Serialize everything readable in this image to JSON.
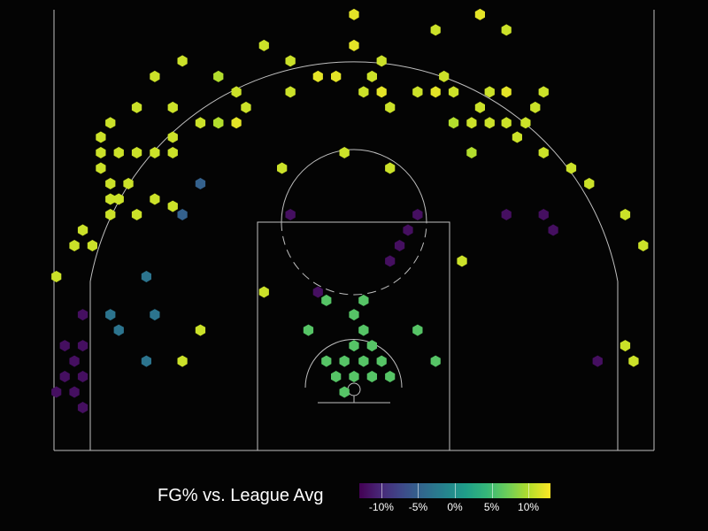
{
  "chart_data": {
    "type": "hexbin",
    "legend": {
      "title": "FG% vs. League Avg",
      "ticks": [
        "-10%",
        "-5%",
        "0%",
        "5%",
        "10%"
      ],
      "tick_values": [
        -10,
        -5,
        0,
        5,
        10
      ],
      "range": [
        -13,
        13
      ],
      "colormap": "viridis"
    },
    "court": {
      "units": "feet",
      "x_range": [
        -25,
        25
      ],
      "y_range": [
        0,
        37
      ]
    },
    "points": [
      {
        "x": 0,
        "y": 36.6,
        "v": 12
      },
      {
        "x": 10.5,
        "y": 36.6,
        "v": 12
      },
      {
        "x": 6.8,
        "y": 35.3,
        "v": 11
      },
      {
        "x": 12.7,
        "y": 35.3,
        "v": 11
      },
      {
        "x": -7.5,
        "y": 34.0,
        "v": 11
      },
      {
        "x": 0,
        "y": 34.0,
        "v": 12
      },
      {
        "x": -14.3,
        "y": 32.7,
        "v": 11
      },
      {
        "x": -5.3,
        "y": 32.7,
        "v": 11
      },
      {
        "x": 2.3,
        "y": 32.7,
        "v": 11
      },
      {
        "x": -16.6,
        "y": 31.4,
        "v": 11
      },
      {
        "x": -11.3,
        "y": 31.4,
        "v": 10
      },
      {
        "x": -3.0,
        "y": 31.4,
        "v": 12
      },
      {
        "x": -1.5,
        "y": 31.4,
        "v": 12
      },
      {
        "x": 1.5,
        "y": 31.4,
        "v": 11
      },
      {
        "x": 7.5,
        "y": 31.4,
        "v": 11
      },
      {
        "x": -9.8,
        "y": 30.1,
        "v": 11
      },
      {
        "x": -5.3,
        "y": 30.1,
        "v": 11
      },
      {
        "x": 0.8,
        "y": 30.1,
        "v": 11
      },
      {
        "x": 2.3,
        "y": 30.1,
        "v": 12
      },
      {
        "x": 5.3,
        "y": 30.1,
        "v": 11
      },
      {
        "x": 6.8,
        "y": 30.1,
        "v": 12
      },
      {
        "x": 8.3,
        "y": 30.1,
        "v": 11
      },
      {
        "x": 11.3,
        "y": 30.1,
        "v": 11
      },
      {
        "x": 12.7,
        "y": 30.1,
        "v": 12
      },
      {
        "x": 15.8,
        "y": 30.1,
        "v": 11
      },
      {
        "x": -18.1,
        "y": 28.8,
        "v": 11
      },
      {
        "x": -15.1,
        "y": 28.8,
        "v": 11
      },
      {
        "x": -9.0,
        "y": 28.8,
        "v": 11
      },
      {
        "x": 3.0,
        "y": 28.8,
        "v": 11
      },
      {
        "x": 10.5,
        "y": 28.8,
        "v": 11
      },
      {
        "x": 15.1,
        "y": 28.8,
        "v": 11
      },
      {
        "x": -20.3,
        "y": 27.5,
        "v": 11
      },
      {
        "x": -12.8,
        "y": 27.5,
        "v": 11
      },
      {
        "x": -11.3,
        "y": 27.5,
        "v": 11
      },
      {
        "x": -11.3,
        "y": 27.5,
        "v": 10
      },
      {
        "x": -9.8,
        "y": 27.5,
        "v": 12
      },
      {
        "x": 8.3,
        "y": 27.5,
        "v": 10
      },
      {
        "x": 9.8,
        "y": 27.5,
        "v": 11
      },
      {
        "x": 11.3,
        "y": 27.5,
        "v": 11
      },
      {
        "x": 12.7,
        "y": 27.5,
        "v": 11
      },
      {
        "x": 14.3,
        "y": 27.5,
        "v": 11
      },
      {
        "x": -15.1,
        "y": 26.3,
        "v": 11
      },
      {
        "x": -21.1,
        "y": 26.3,
        "v": 11
      },
      {
        "x": 13.6,
        "y": 26.3,
        "v": 11
      },
      {
        "x": -21.1,
        "y": 25.0,
        "v": 11
      },
      {
        "x": -19.6,
        "y": 25.0,
        "v": 11
      },
      {
        "x": -18.1,
        "y": 25.0,
        "v": 11
      },
      {
        "x": -16.6,
        "y": 25.0,
        "v": 11
      },
      {
        "x": -15.1,
        "y": 25.0,
        "v": 11
      },
      {
        "x": -0.8,
        "y": 25.0,
        "v": 11
      },
      {
        "x": 9.8,
        "y": 25.0,
        "v": 10
      },
      {
        "x": 15.8,
        "y": 25.0,
        "v": 11
      },
      {
        "x": -21.1,
        "y": 23.7,
        "v": 11
      },
      {
        "x": -6.0,
        "y": 23.7,
        "v": 11
      },
      {
        "x": 3.0,
        "y": 23.7,
        "v": 11
      },
      {
        "x": 18.1,
        "y": 23.7,
        "v": 11
      },
      {
        "x": -20.3,
        "y": 22.4,
        "v": 11
      },
      {
        "x": -18.8,
        "y": 22.4,
        "v": 11
      },
      {
        "x": -12.8,
        "y": 22.4,
        "v": -5
      },
      {
        "x": 19.6,
        "y": 22.4,
        "v": 11
      },
      {
        "x": -20.3,
        "y": 21.1,
        "v": 11
      },
      {
        "x": -19.6,
        "y": 21.1,
        "v": 11
      },
      {
        "x": -16.6,
        "y": 21.1,
        "v": 11
      },
      {
        "x": -15.1,
        "y": 20.5,
        "v": 11
      },
      {
        "x": -20.3,
        "y": 19.8,
        "v": 11
      },
      {
        "x": -18.1,
        "y": 19.8,
        "v": 11
      },
      {
        "x": -14.3,
        "y": 19.8,
        "v": -5
      },
      {
        "x": -5.3,
        "y": 19.8,
        "v": -12
      },
      {
        "x": 5.3,
        "y": 19.8,
        "v": -12
      },
      {
        "x": 12.7,
        "y": 19.8,
        "v": -12
      },
      {
        "x": 15.8,
        "y": 19.8,
        "v": -12
      },
      {
        "x": 22.6,
        "y": 19.8,
        "v": 11
      },
      {
        "x": -22.6,
        "y": 18.5,
        "v": 11
      },
      {
        "x": 4.5,
        "y": 18.5,
        "v": -12
      },
      {
        "x": 16.6,
        "y": 18.5,
        "v": -12
      },
      {
        "x": -23.3,
        "y": 17.2,
        "v": 11
      },
      {
        "x": -21.8,
        "y": 17.2,
        "v": 11
      },
      {
        "x": 3.8,
        "y": 17.2,
        "v": -12
      },
      {
        "x": 24.1,
        "y": 17.2,
        "v": 11
      },
      {
        "x": 3.0,
        "y": 15.9,
        "v": -12
      },
      {
        "x": 9.0,
        "y": 15.9,
        "v": 11
      },
      {
        "x": -24.8,
        "y": 14.6,
        "v": 11
      },
      {
        "x": -17.3,
        "y": 14.6,
        "v": -3
      },
      {
        "x": -7.5,
        "y": 13.3,
        "v": 11
      },
      {
        "x": -3.0,
        "y": 13.3,
        "v": -12
      },
      {
        "x": -2.3,
        "y": 12.6,
        "v": 6
      },
      {
        "x": 0.8,
        "y": 12.6,
        "v": 6
      },
      {
        "x": -22.6,
        "y": 11.4,
        "v": -12
      },
      {
        "x": -20.3,
        "y": 11.4,
        "v": -3
      },
      {
        "x": -16.6,
        "y": 11.4,
        "v": -3
      },
      {
        "x": 0,
        "y": 11.4,
        "v": 6
      },
      {
        "x": -19.6,
        "y": 10.1,
        "v": -3
      },
      {
        "x": -12.8,
        "y": 10.1,
        "v": 11
      },
      {
        "x": -3.8,
        "y": 10.1,
        "v": 6
      },
      {
        "x": 0.8,
        "y": 10.1,
        "v": 6
      },
      {
        "x": 5.3,
        "y": 10.1,
        "v": 6
      },
      {
        "x": -24.1,
        "y": 8.8,
        "v": -12
      },
      {
        "x": -22.6,
        "y": 8.8,
        "v": -12
      },
      {
        "x": 0,
        "y": 8.8,
        "v": 6
      },
      {
        "x": 1.5,
        "y": 8.8,
        "v": 6
      },
      {
        "x": 22.6,
        "y": 8.8,
        "v": 11
      },
      {
        "x": -23.3,
        "y": 7.5,
        "v": -12
      },
      {
        "x": -17.3,
        "y": 7.5,
        "v": -3
      },
      {
        "x": -14.3,
        "y": 7.5,
        "v": 11
      },
      {
        "x": -2.3,
        "y": 7.5,
        "v": 6
      },
      {
        "x": -0.8,
        "y": 7.5,
        "v": 6
      },
      {
        "x": 0.8,
        "y": 7.5,
        "v": 6
      },
      {
        "x": 2.3,
        "y": 7.5,
        "v": 6
      },
      {
        "x": 6.8,
        "y": 7.5,
        "v": 6
      },
      {
        "x": 20.3,
        "y": 7.5,
        "v": -12
      },
      {
        "x": 23.3,
        "y": 7.5,
        "v": 11
      },
      {
        "x": -24.1,
        "y": 6.2,
        "v": -12
      },
      {
        "x": -22.6,
        "y": 6.2,
        "v": -12
      },
      {
        "x": -1.5,
        "y": 6.2,
        "v": 6
      },
      {
        "x": 0,
        "y": 6.2,
        "v": 6
      },
      {
        "x": 1.5,
        "y": 6.2,
        "v": 6
      },
      {
        "x": 3.0,
        "y": 6.2,
        "v": 6
      },
      {
        "x": -24.8,
        "y": 4.9,
        "v": -12
      },
      {
        "x": -23.3,
        "y": 4.9,
        "v": -12
      },
      {
        "x": -0.8,
        "y": 4.9,
        "v": 6
      },
      {
        "x": -22.6,
        "y": 3.6,
        "v": -12
      }
    ]
  }
}
